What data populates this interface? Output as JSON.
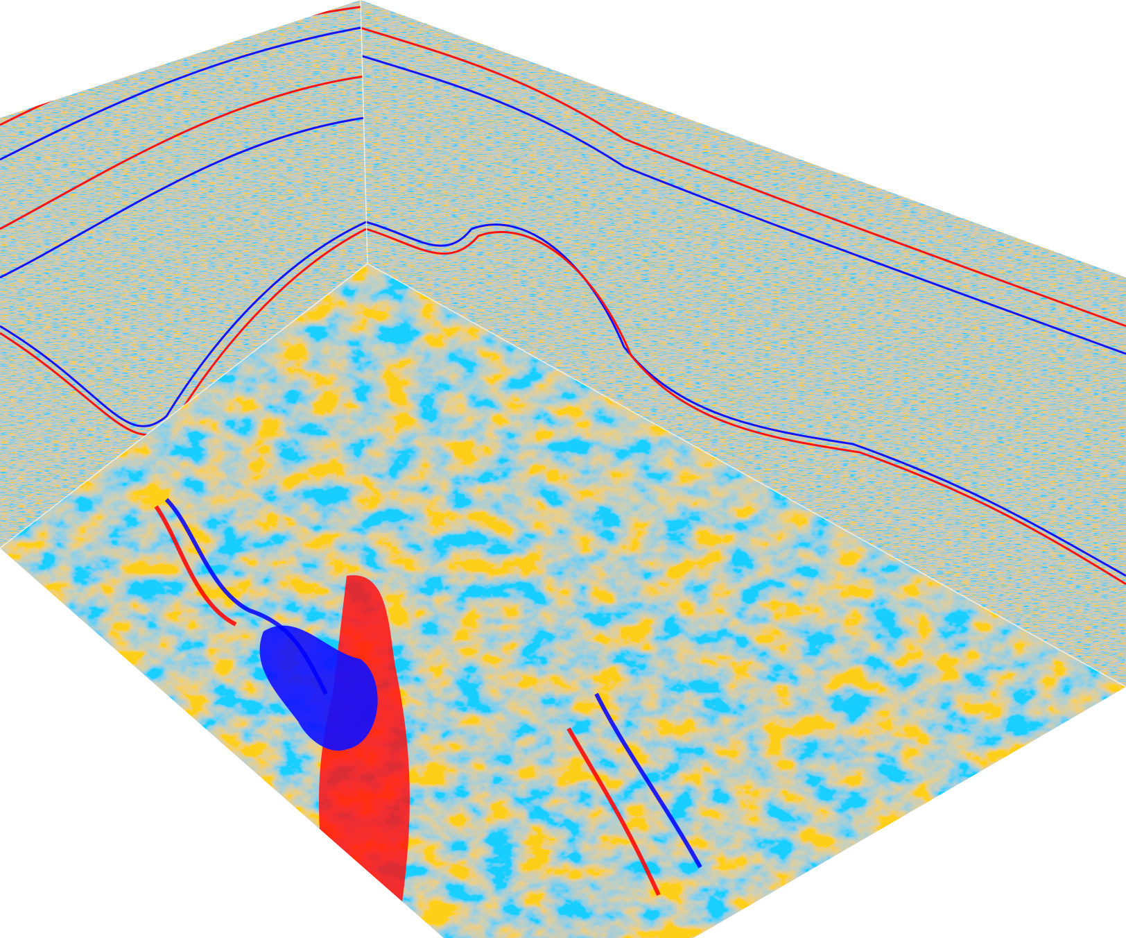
{
  "scene": {
    "kind": "seismic-volume-3d",
    "colormap": {
      "negative": "#0000ff",
      "zero": "#ffffff",
      "positive": "#ff0000"
    },
    "panels": [
      "left-inline-section",
      "right-crossline-section",
      "horizontal-time-slice"
    ]
  }
}
